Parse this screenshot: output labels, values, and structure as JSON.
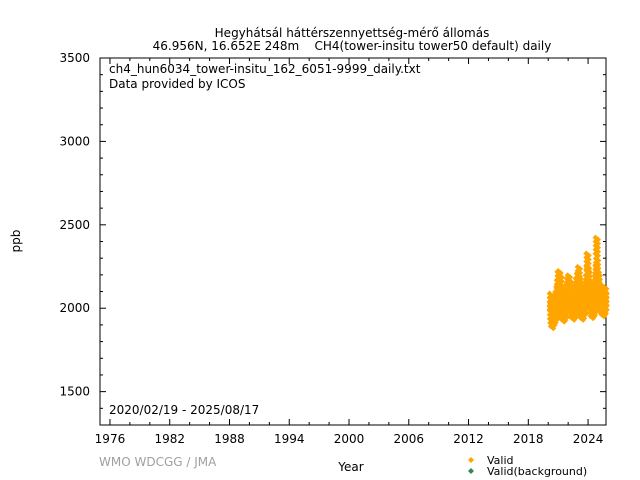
{
  "chart_data": {
    "type": "scatter",
    "title": "Hegyhátsál háttérszennyettség-mérő állomás",
    "subtitle": "46.956N, 16.652E 248m    CH4(tower-insitu tower50 default) daily",
    "file_label": "ch4_hun6034_tower-insitu_162_6051-9999_daily.txt",
    "provider_label": "Data provided by ICOS",
    "date_range_label": "2020/02/19 - 2025/08/17",
    "xlabel": "Year",
    "ylabel": "ppb",
    "xlim": [
      1975,
      2025.8
    ],
    "ylim": [
      1300,
      3500
    ],
    "x_ticks": [
      "1976",
      "1982",
      "1988",
      "1994",
      "2000",
      "2006",
      "2012",
      "2018",
      "2024"
    ],
    "y_ticks": [
      "1500",
      "2000",
      "2500",
      "3000",
      "3500"
    ],
    "grid": false,
    "legend_position": "bottom-right",
    "watermark": "WMO WDCGG / JMA",
    "series": [
      {
        "name": "Valid",
        "color": "#ffa500",
        "points": [
          [
            2020.14,
            2040
          ],
          [
            2020.16,
            1985
          ],
          [
            2020.2,
            1960
          ],
          [
            2020.22,
            2010
          ],
          [
            2020.26,
            1940
          ],
          [
            2020.3,
            1975
          ],
          [
            2020.35,
            1990
          ],
          [
            2020.4,
            1960
          ],
          [
            2020.45,
            2000
          ],
          [
            2020.5,
            1975
          ],
          [
            2020.55,
            2020
          ],
          [
            2020.6,
            1990
          ],
          [
            2020.65,
            2030
          ],
          [
            2020.7,
            2050
          ],
          [
            2020.75,
            2010
          ],
          [
            2020.8,
            2080
          ],
          [
            2020.85,
            2120
          ],
          [
            2020.88,
            2060
          ],
          [
            2020.92,
            2170
          ],
          [
            2020.96,
            2100
          ],
          [
            2021.0,
            2175
          ],
          [
            2021.04,
            2130
          ],
          [
            2021.08,
            2060
          ],
          [
            2021.12,
            2150
          ],
          [
            2021.16,
            2020
          ],
          [
            2021.2,
            2080
          ],
          [
            2021.25,
            1990
          ],
          [
            2021.3,
            2030
          ],
          [
            2021.35,
            1980
          ],
          [
            2021.4,
            2010
          ],
          [
            2021.45,
            1985
          ],
          [
            2021.5,
            2020
          ],
          [
            2021.55,
            2000
          ],
          [
            2021.6,
            2040
          ],
          [
            2021.65,
            2010
          ],
          [
            2021.7,
            2060
          ],
          [
            2021.75,
            2090
          ],
          [
            2021.8,
            2040
          ],
          [
            2021.85,
            2130
          ],
          [
            2021.9,
            2080
          ],
          [
            2021.95,
            2150
          ],
          [
            2022.0,
            2100
          ],
          [
            2022.05,
            2070
          ],
          [
            2022.1,
            2120
          ],
          [
            2022.15,
            2030
          ],
          [
            2022.2,
            2060
          ],
          [
            2022.25,
            2000
          ],
          [
            2022.3,
            2040
          ],
          [
            2022.35,
            1990
          ],
          [
            2022.4,
            2020
          ],
          [
            2022.45,
            2000
          ],
          [
            2022.5,
            2040
          ],
          [
            2022.55,
            2010
          ],
          [
            2022.6,
            2060
          ],
          [
            2022.65,
            2040
          ],
          [
            2022.7,
            2090
          ],
          [
            2022.75,
            2130
          ],
          [
            2022.8,
            2070
          ],
          [
            2022.85,
            2160
          ],
          [
            2022.9,
            2110
          ],
          [
            2022.95,
            2200
          ],
          [
            2023.0,
            2140
          ],
          [
            2023.05,
            2060
          ],
          [
            2023.1,
            2100
          ],
          [
            2023.15,
            2010
          ],
          [
            2023.2,
            2050
          ],
          [
            2023.25,
            1990
          ],
          [
            2023.3,
            2030
          ],
          [
            2023.35,
            2000
          ],
          [
            2023.4,
            2040
          ],
          [
            2023.45,
            2020
          ],
          [
            2023.5,
            2060
          ],
          [
            2023.55,
            2030
          ],
          [
            2023.6,
            2080
          ],
          [
            2023.65,
            2060
          ],
          [
            2023.7,
            2110
          ],
          [
            2023.75,
            2150
          ],
          [
            2023.78,
            2090
          ],
          [
            2023.82,
            2280
          ],
          [
            2023.85,
            2200
          ],
          [
            2023.9,
            2130
          ],
          [
            2023.95,
            2180
          ],
          [
            2024.0,
            2120
          ],
          [
            2024.05,
            2060
          ],
          [
            2024.1,
            2100
          ],
          [
            2024.15,
            2020
          ],
          [
            2024.2,
            2050
          ],
          [
            2024.25,
            2000
          ],
          [
            2024.3,
            2040
          ],
          [
            2024.35,
            2010
          ],
          [
            2024.4,
            2050
          ],
          [
            2024.45,
            2020
          ],
          [
            2024.5,
            2070
          ],
          [
            2024.55,
            2040
          ],
          [
            2024.6,
            2090
          ],
          [
            2024.65,
            2070
          ],
          [
            2024.7,
            2150
          ],
          [
            2024.72,
            2210
          ],
          [
            2024.75,
            2375
          ],
          [
            2024.78,
            2250
          ],
          [
            2024.82,
            2100
          ],
          [
            2024.85,
            2180
          ],
          [
            2024.9,
            2120
          ],
          [
            2024.95,
            2160
          ],
          [
            2025.0,
            2080
          ],
          [
            2025.05,
            2040
          ],
          [
            2025.1,
            2100
          ],
          [
            2025.15,
            2030
          ],
          [
            2025.2,
            2060
          ],
          [
            2025.25,
            2020
          ],
          [
            2025.3,
            2050
          ],
          [
            2025.35,
            2010
          ],
          [
            2025.4,
            2040
          ],
          [
            2025.45,
            2020
          ],
          [
            2025.5,
            2060
          ],
          [
            2025.55,
            2030
          ],
          [
            2025.6,
            2080
          ],
          [
            2025.63,
            2050
          ]
        ]
      },
      {
        "name": "Valid(background)",
        "color": "#2e8b57",
        "points": []
      }
    ]
  }
}
